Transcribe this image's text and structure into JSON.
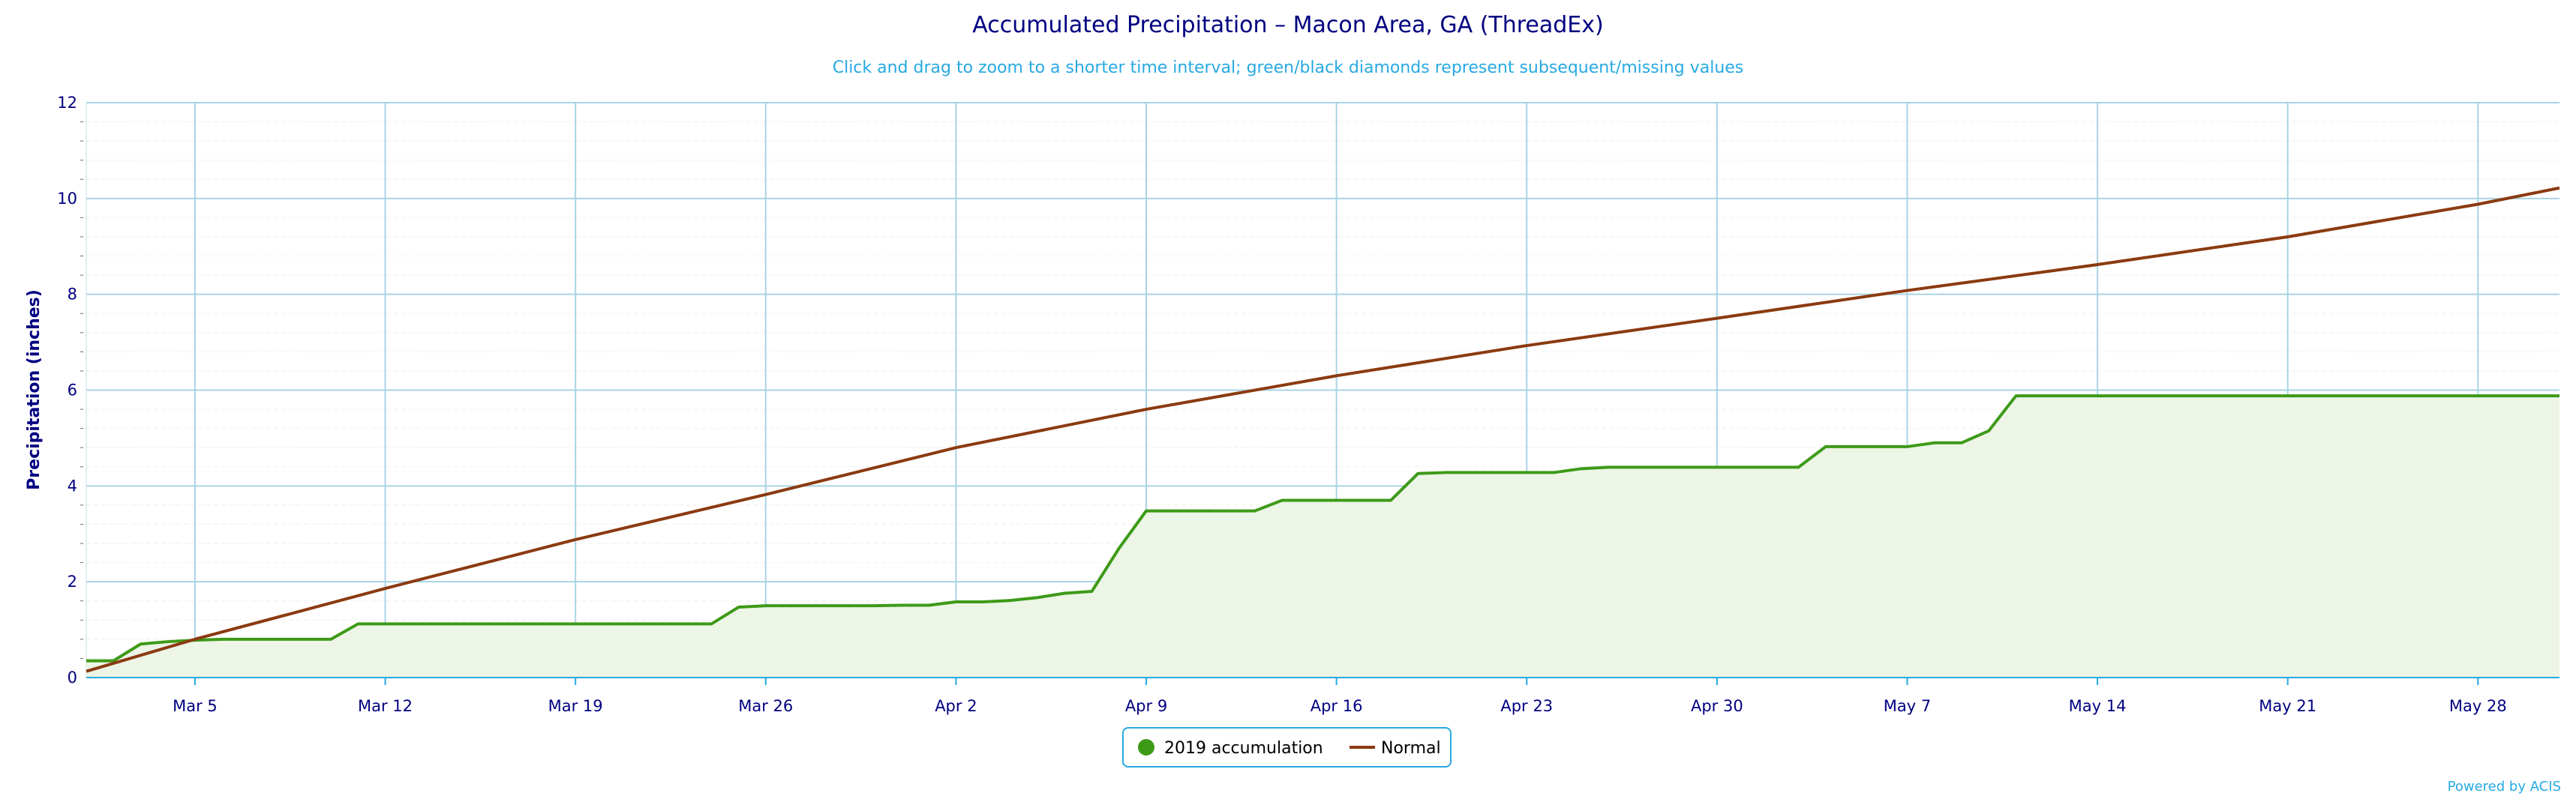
{
  "colors": {
    "background": "#ffffff",
    "title": "#000080",
    "subtitle": "#27a9e1",
    "grid_major": "#a9d3e5",
    "grid_minor": "#efefef",
    "axis_line": "#27a9e1",
    "series_2019_line": "#3d9a18",
    "series_2019_fill": "#ecf5e6",
    "series_normal_line": "#8b3a10",
    "legend_border": "#27a9e1",
    "credit": "#27a9e1"
  },
  "legend": {
    "placement": "bottom-center",
    "items": [
      {
        "label": "2019 accumulation",
        "marker": "circle",
        "color": "#3d9a18"
      },
      {
        "label": "Normal",
        "marker": "line",
        "color": "#8b3a10"
      }
    ]
  },
  "credit": "Powered by ACIS",
  "chart_data": {
    "type": "area",
    "title": "Accumulated Precipitation – Macon Area, GA (ThreadEx)",
    "subtitle": "Click and drag to zoom to a shorter time interval; green/black diamonds represent subsequent/missing values",
    "xlabel": "",
    "ylabel": "Precipitation (inches)",
    "ylim": [
      0,
      12
    ],
    "yticks": [
      0,
      2,
      4,
      6,
      8,
      10,
      12
    ],
    "xlim": [
      "2019-03-01",
      "2019-05-31"
    ],
    "xticks": [
      {
        "date": "2019-03-05",
        "label": "Mar 5"
      },
      {
        "date": "2019-03-12",
        "label": "Mar 12"
      },
      {
        "date": "2019-03-19",
        "label": "Mar 19"
      },
      {
        "date": "2019-03-26",
        "label": "Mar 26"
      },
      {
        "date": "2019-04-02",
        "label": "Apr 2"
      },
      {
        "date": "2019-04-09",
        "label": "Apr 9"
      },
      {
        "date": "2019-04-16",
        "label": "Apr 16"
      },
      {
        "date": "2019-04-23",
        "label": "Apr 23"
      },
      {
        "date": "2019-04-30",
        "label": "Apr 30"
      },
      {
        "date": "2019-05-07",
        "label": "May 7"
      },
      {
        "date": "2019-05-14",
        "label": "May 14"
      },
      {
        "date": "2019-05-21",
        "label": "May 21"
      },
      {
        "date": "2019-05-28",
        "label": "May 28"
      }
    ],
    "grid": true,
    "series": [
      {
        "name": "2019 accumulation",
        "style": "area",
        "points": [
          [
            "2019-03-01",
            0.35
          ],
          [
            "2019-03-02",
            0.35
          ],
          [
            "2019-03-03",
            0.7
          ],
          [
            "2019-03-04",
            0.75
          ],
          [
            "2019-03-05",
            0.78
          ],
          [
            "2019-03-06",
            0.8
          ],
          [
            "2019-03-07",
            0.8
          ],
          [
            "2019-03-08",
            0.8
          ],
          [
            "2019-03-09",
            0.8
          ],
          [
            "2019-03-10",
            0.8
          ],
          [
            "2019-03-11",
            1.12
          ],
          [
            "2019-03-12",
            1.12
          ],
          [
            "2019-03-13",
            1.12
          ],
          [
            "2019-03-14",
            1.12
          ],
          [
            "2019-03-15",
            1.12
          ],
          [
            "2019-03-16",
            1.12
          ],
          [
            "2019-03-17",
            1.12
          ],
          [
            "2019-03-18",
            1.12
          ],
          [
            "2019-03-19",
            1.12
          ],
          [
            "2019-03-20",
            1.12
          ],
          [
            "2019-03-21",
            1.12
          ],
          [
            "2019-03-22",
            1.12
          ],
          [
            "2019-03-23",
            1.12
          ],
          [
            "2019-03-24",
            1.12
          ],
          [
            "2019-03-25",
            1.47
          ],
          [
            "2019-03-26",
            1.5
          ],
          [
            "2019-03-27",
            1.5
          ],
          [
            "2019-03-28",
            1.5
          ],
          [
            "2019-03-29",
            1.5
          ],
          [
            "2019-03-30",
            1.5
          ],
          [
            "2019-03-31",
            1.51
          ],
          [
            "2019-04-01",
            1.51
          ],
          [
            "2019-04-02",
            1.58
          ],
          [
            "2019-04-03",
            1.58
          ],
          [
            "2019-04-04",
            1.61
          ],
          [
            "2019-04-05",
            1.67
          ],
          [
            "2019-04-06",
            1.76
          ],
          [
            "2019-04-07",
            1.8
          ],
          [
            "2019-04-08",
            2.7
          ],
          [
            "2019-04-09",
            3.48
          ],
          [
            "2019-04-10",
            3.48
          ],
          [
            "2019-04-11",
            3.48
          ],
          [
            "2019-04-12",
            3.48
          ],
          [
            "2019-04-13",
            3.48
          ],
          [
            "2019-04-14",
            3.7
          ],
          [
            "2019-04-15",
            3.7
          ],
          [
            "2019-04-16",
            3.7
          ],
          [
            "2019-04-17",
            3.7
          ],
          [
            "2019-04-18",
            3.7
          ],
          [
            "2019-04-19",
            4.26
          ],
          [
            "2019-04-20",
            4.28
          ],
          [
            "2019-04-21",
            4.28
          ],
          [
            "2019-04-22",
            4.28
          ],
          [
            "2019-04-23",
            4.28
          ],
          [
            "2019-04-24",
            4.28
          ],
          [
            "2019-04-25",
            4.36
          ],
          [
            "2019-04-26",
            4.39
          ],
          [
            "2019-04-27",
            4.39
          ],
          [
            "2019-04-28",
            4.39
          ],
          [
            "2019-04-29",
            4.39
          ],
          [
            "2019-04-30",
            4.39
          ],
          [
            "2019-05-01",
            4.39
          ],
          [
            "2019-05-02",
            4.39
          ],
          [
            "2019-05-03",
            4.39
          ],
          [
            "2019-05-04",
            4.82
          ],
          [
            "2019-05-05",
            4.82
          ],
          [
            "2019-05-06",
            4.82
          ],
          [
            "2019-05-07",
            4.82
          ],
          [
            "2019-05-08",
            4.9
          ],
          [
            "2019-05-09",
            4.9
          ],
          [
            "2019-05-10",
            5.15
          ],
          [
            "2019-05-11",
            5.88
          ],
          [
            "2019-05-12",
            5.88
          ],
          [
            "2019-05-13",
            5.88
          ],
          [
            "2019-05-14",
            5.88
          ],
          [
            "2019-05-15",
            5.88
          ],
          [
            "2019-05-16",
            5.88
          ],
          [
            "2019-05-17",
            5.88
          ],
          [
            "2019-05-18",
            5.88
          ],
          [
            "2019-05-19",
            5.88
          ],
          [
            "2019-05-20",
            5.88
          ],
          [
            "2019-05-21",
            5.88
          ],
          [
            "2019-05-22",
            5.88
          ],
          [
            "2019-05-23",
            5.88
          ],
          [
            "2019-05-24",
            5.88
          ],
          [
            "2019-05-25",
            5.88
          ],
          [
            "2019-05-26",
            5.88
          ],
          [
            "2019-05-27",
            5.88
          ],
          [
            "2019-05-28",
            5.88
          ],
          [
            "2019-05-29",
            5.88
          ],
          [
            "2019-05-30",
            5.88
          ],
          [
            "2019-05-31",
            5.88
          ]
        ]
      },
      {
        "name": "Normal",
        "style": "line",
        "points": [
          [
            "2019-03-01",
            0.13
          ],
          [
            "2019-03-05",
            0.8
          ],
          [
            "2019-03-12",
            1.86
          ],
          [
            "2019-03-19",
            2.88
          ],
          [
            "2019-03-26",
            3.82
          ],
          [
            "2019-04-02",
            4.8
          ],
          [
            "2019-04-09",
            5.6
          ],
          [
            "2019-04-16",
            6.3
          ],
          [
            "2019-04-23",
            6.93
          ],
          [
            "2019-04-30",
            7.5
          ],
          [
            "2019-05-07",
            8.08
          ],
          [
            "2019-05-14",
            8.62
          ],
          [
            "2019-05-21",
            9.2
          ],
          [
            "2019-05-28",
            9.88
          ],
          [
            "2019-05-31",
            10.22
          ]
        ]
      }
    ]
  }
}
